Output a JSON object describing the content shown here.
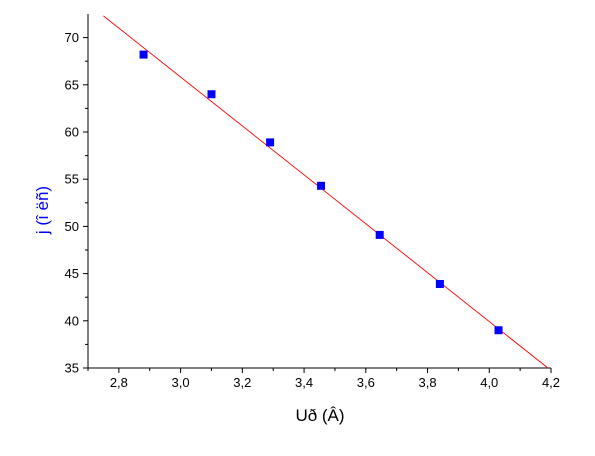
{
  "chart_data": {
    "type": "scatter",
    "title": "",
    "xlabel": "Uð (Â)",
    "ylabel": "j (î ëñ)",
    "xlim": [
      2.7,
      4.2
    ],
    "ylim": [
      35,
      72.5
    ],
    "xticks": [
      2.8,
      3.0,
      3.2,
      3.4,
      3.6,
      3.8,
      4.0,
      4.2
    ],
    "xtick_labels": [
      "2,8",
      "3,0",
      "3,2",
      "3,4",
      "3,6",
      "3,8",
      "4,0",
      "4,2"
    ],
    "yticks": [
      35,
      40,
      45,
      50,
      55,
      60,
      65,
      70
    ],
    "ytick_labels": [
      "35",
      "40",
      "45",
      "50",
      "55",
      "60",
      "65",
      "70"
    ],
    "grid": false,
    "series": [
      {
        "type": "scatter",
        "marker": "square",
        "color": "#0000ff",
        "x": [
          2.88,
          3.1,
          3.29,
          3.455,
          3.645,
          3.84,
          4.03
        ],
        "y": [
          68.2,
          64.0,
          58.9,
          54.3,
          49.1,
          43.9,
          39.0
        ]
      },
      {
        "type": "line",
        "color": "#ff0000",
        "x": [
          2.75,
          4.19
        ],
        "y": [
          72.3,
          35.0
        ]
      }
    ],
    "colors": {
      "axis": "#000000",
      "ylabel": "#0000ff",
      "marker": "#0000ff",
      "fit_line": "#ff0000"
    }
  }
}
